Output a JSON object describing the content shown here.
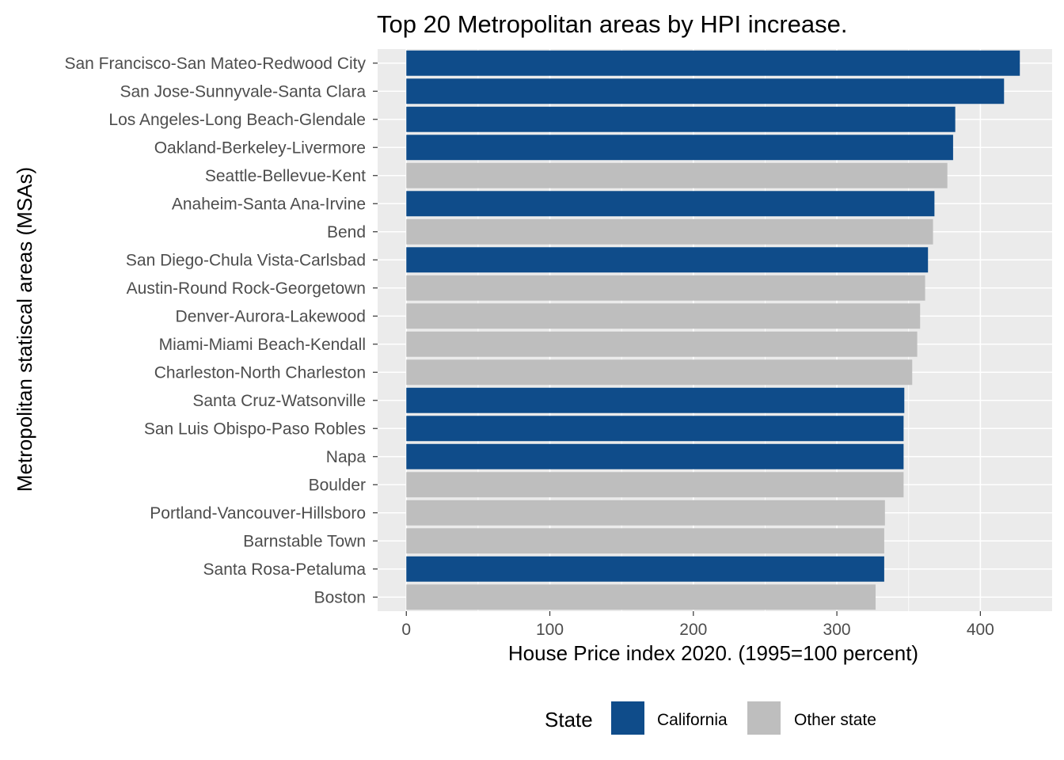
{
  "chart_data": {
    "type": "bar",
    "orientation": "horizontal",
    "title": "Top 20 Metropolitan areas by HPI increase.",
    "xlabel": "House Price index 2020. (1995=100 percent)",
    "ylabel": "Metropolitan statiscal areas (MSAs)",
    "xlim": [
      -20,
      450
    ],
    "x_ticks": [
      0,
      100,
      200,
      300,
      400
    ],
    "grid": true,
    "legend": {
      "title": "State",
      "position": "bottom",
      "entries": [
        {
          "label": "California",
          "color": "#0f4c8a"
        },
        {
          "label": "Other state",
          "color": "#bebebe"
        }
      ]
    },
    "categories": [
      "San Francisco-San Mateo-Redwood City",
      "San Jose-Sunnyvale-Santa Clara",
      "Los Angeles-Long Beach-Glendale",
      "Oakland-Berkeley-Livermore",
      "Seattle-Bellevue-Kent",
      "Anaheim-Santa Ana-Irvine",
      "Bend",
      "San Diego-Chula Vista-Carlsbad",
      "Austin-Round Rock-Georgetown",
      "Denver-Aurora-Lakewood",
      "Miami-Miami Beach-Kendall",
      "Charleston-North Charleston",
      "Santa Cruz-Watsonville",
      "San Luis Obispo-Paso Robles",
      "Napa",
      "Boulder",
      "Portland-Vancouver-Hillsboro",
      "Barnstable Town",
      "Santa Rosa-Petaluma",
      "Boston"
    ],
    "values": [
      427.5,
      416.5,
      382.5,
      381.0,
      377.0,
      368.0,
      367.0,
      363.5,
      361.5,
      358.0,
      356.0,
      352.5,
      347.0,
      346.5,
      346.5,
      346.5,
      333.5,
      333.0,
      333.0,
      327.0
    ],
    "state": [
      "California",
      "California",
      "California",
      "California",
      "Other state",
      "California",
      "Other state",
      "California",
      "Other state",
      "Other state",
      "Other state",
      "Other state",
      "California",
      "California",
      "California",
      "Other state",
      "Other state",
      "Other state",
      "California",
      "Other state"
    ]
  }
}
